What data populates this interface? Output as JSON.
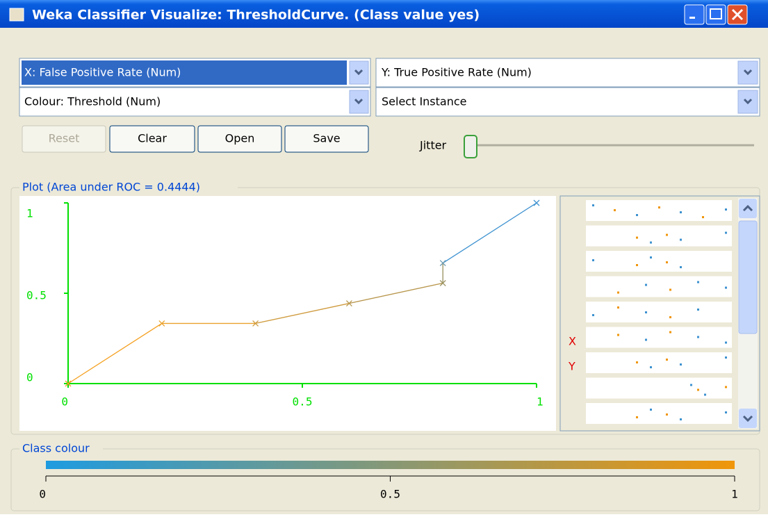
{
  "window": {
    "title": "Weka Classifier Visualize: ThresholdCurve. (Class value yes)"
  },
  "controls": {
    "x_axis": "X: False Positive Rate (Num)",
    "y_axis": "Y: True Positive Rate (Num)",
    "colour": "Colour: Threshold (Num)",
    "instance": "Select Instance"
  },
  "buttons": [
    "Reset",
    "Clear",
    "Open",
    "Save"
  ],
  "jitter": "Jitter",
  "plot": {
    "title": "Plot (Area under ROC = 0.4444)",
    "x": [
      0,
      0.2,
      0.4,
      0.6,
      0.8,
      0.8,
      1
    ],
    "y": [
      0,
      0.333,
      0.333,
      0.444,
      0.556,
      0.667,
      1
    ],
    "colors": [
      "#f5a020",
      "#eba22c",
      "#cf9a3c",
      "#b8964c",
      "#978f5c",
      "#6c9ab0",
      "#3d92d0"
    ],
    "xlim": [
      0,
      1
    ],
    "ylim": [
      0,
      1
    ],
    "xticks": [
      0,
      0.5,
      1
    ],
    "yticks": [
      0,
      0.5,
      1
    ]
  },
  "panel_labels": [
    "X",
    "Y"
  ],
  "class_colour": {
    "title": "Class colour",
    "lim": [
      0,
      1
    ],
    "ticks": [
      0,
      0.5,
      1
    ],
    "colors": [
      "#1e9be0",
      "#f0960a"
    ]
  }
}
